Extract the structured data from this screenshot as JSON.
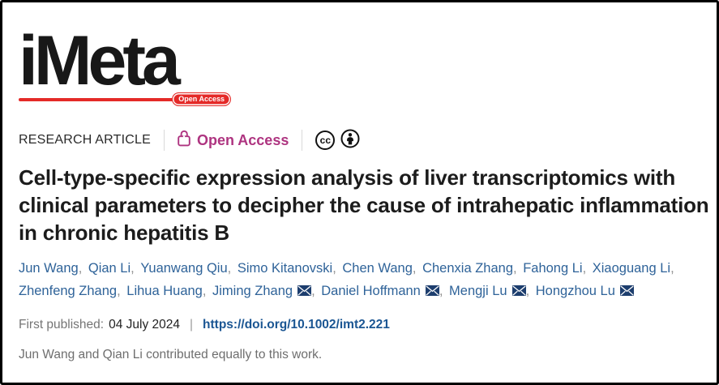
{
  "logo": {
    "text": "iMeta",
    "badge": "Open Access"
  },
  "meta_bar": {
    "article_type": "RESEARCH ARTICLE",
    "access_label": "Open Access",
    "cc_label": "cc"
  },
  "article": {
    "title": "Cell-type-specific expression analysis of liver transcriptomics with clinical parameters to decipher the cause of intrahepatic inflammation in chronic hepatitis B"
  },
  "authors": {
    "list": [
      {
        "name": "Jun Wang",
        "email": false
      },
      {
        "name": "Qian Li",
        "email": false
      },
      {
        "name": "Yuanwang Qiu",
        "email": false
      },
      {
        "name": "Simo Kitanovski",
        "email": false
      },
      {
        "name": "Chen Wang",
        "email": false
      },
      {
        "name": "Chenxia Zhang",
        "email": false
      },
      {
        "name": "Fahong Li",
        "email": false
      },
      {
        "name": "Xiaoguang Li",
        "email": false
      },
      {
        "name": "Zhenfeng Zhang",
        "email": false
      },
      {
        "name": "Lihua Huang",
        "email": false
      },
      {
        "name": "Jiming Zhang",
        "email": true
      },
      {
        "name": "Daniel Hoffmann",
        "email": true
      },
      {
        "name": "Mengji Lu",
        "email": true
      },
      {
        "name": "Hongzhou Lu",
        "email": true
      }
    ]
  },
  "published": {
    "label": "First published:",
    "date": "04 July 2024",
    "separator": "|",
    "doi": "https://doi.org/10.1002/imt2.221"
  },
  "footnote": "Jun Wang and Qian Li contributed equally to this work.",
  "colors": {
    "accent_red": "#e42a28",
    "accent_magenta": "#ae3480",
    "author_link_blue": "#2f6399",
    "doi_link_blue": "#1b5693",
    "envelope_navy": "#1d3e6e"
  }
}
